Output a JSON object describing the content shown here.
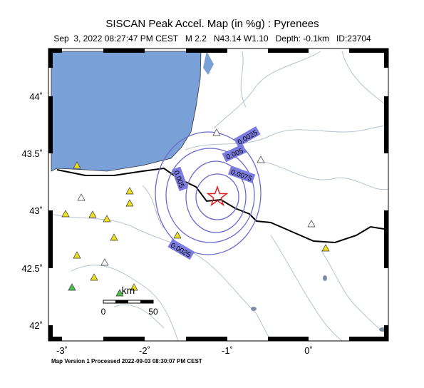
{
  "header": {
    "title": "SISCAN Peak Accel. Map (in %g) : Pyrenees",
    "subtitle": "Sep  3, 2022 08:27:47 PM CEST   M 2.2   N43.14 W1.10   Depth: -0.1km   ID:23704"
  },
  "map": {
    "lat_labels": [
      "44˚",
      "43.5˚",
      "43˚",
      "42.5˚",
      "42˚"
    ],
    "lon_labels": [
      "-3˚",
      "-2˚",
      "-1˚",
      "0˚"
    ],
    "contour_labels": [
      "0.0025",
      "0.005",
      "0.0075",
      "0.005",
      "0.0025"
    ],
    "scale": {
      "unit": "km",
      "start": "0",
      "end": "50"
    }
  },
  "footer": "Map Version 1 Processed 2022-09-03 08:30:07 PM CEST"
}
